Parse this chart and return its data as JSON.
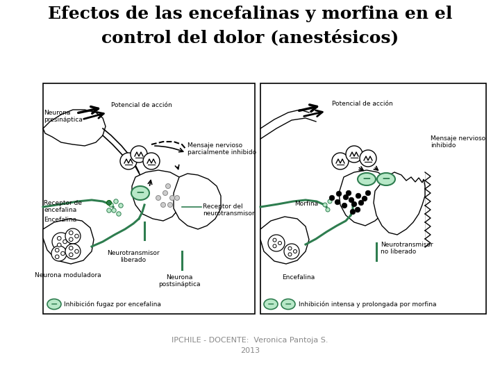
{
  "title_line1": "Efectos de las encefalinas y morfina en el",
  "title_line2": "control del dolor (anestésicos)",
  "title_fontsize": 18,
  "title_fontweight": "bold",
  "footer_line1": "IPCHILE - DOCENTE:  Veronica Pantoja S.",
  "footer_line2": "2013",
  "footer_color": "#888888",
  "footer_fontsize": 8,
  "bg_color": "#ffffff",
  "green_color": "#2e7d4f",
  "light_green": "#b8e8c8",
  "panel1_legend": "Inhibición fugaz por encefalina",
  "panel2_legend": "Inhibición intensa y prolongada por morfina",
  "label_neurona_pre": "Neurona\npresináptica",
  "label_potencial1": "Potencial de acción",
  "label_mensaje_parcial": "Mensaje nervioso\nparcialmente inhibido",
  "label_receptor_enc": "Receptor de\nencefalina",
  "label_encefalina1": "Encefalina",
  "label_receptor_neuro": "Receptor del\nneurotransmisor",
  "label_neuro_lib": "Neurotransmisor\nliberado",
  "label_neurona_mod": "Neurona moduladora",
  "label_neurona_post": "Neurona\npostsináptica",
  "label_potencial2": "Potencial de acción",
  "label_mensaje_inhib": "Mensaje nervioso\ninhibido",
  "label_morfina": "Morfina",
  "label_neuro_nolib": "Neurotransmisor\nno liberado",
  "label_encefalina2": "Encefalina"
}
